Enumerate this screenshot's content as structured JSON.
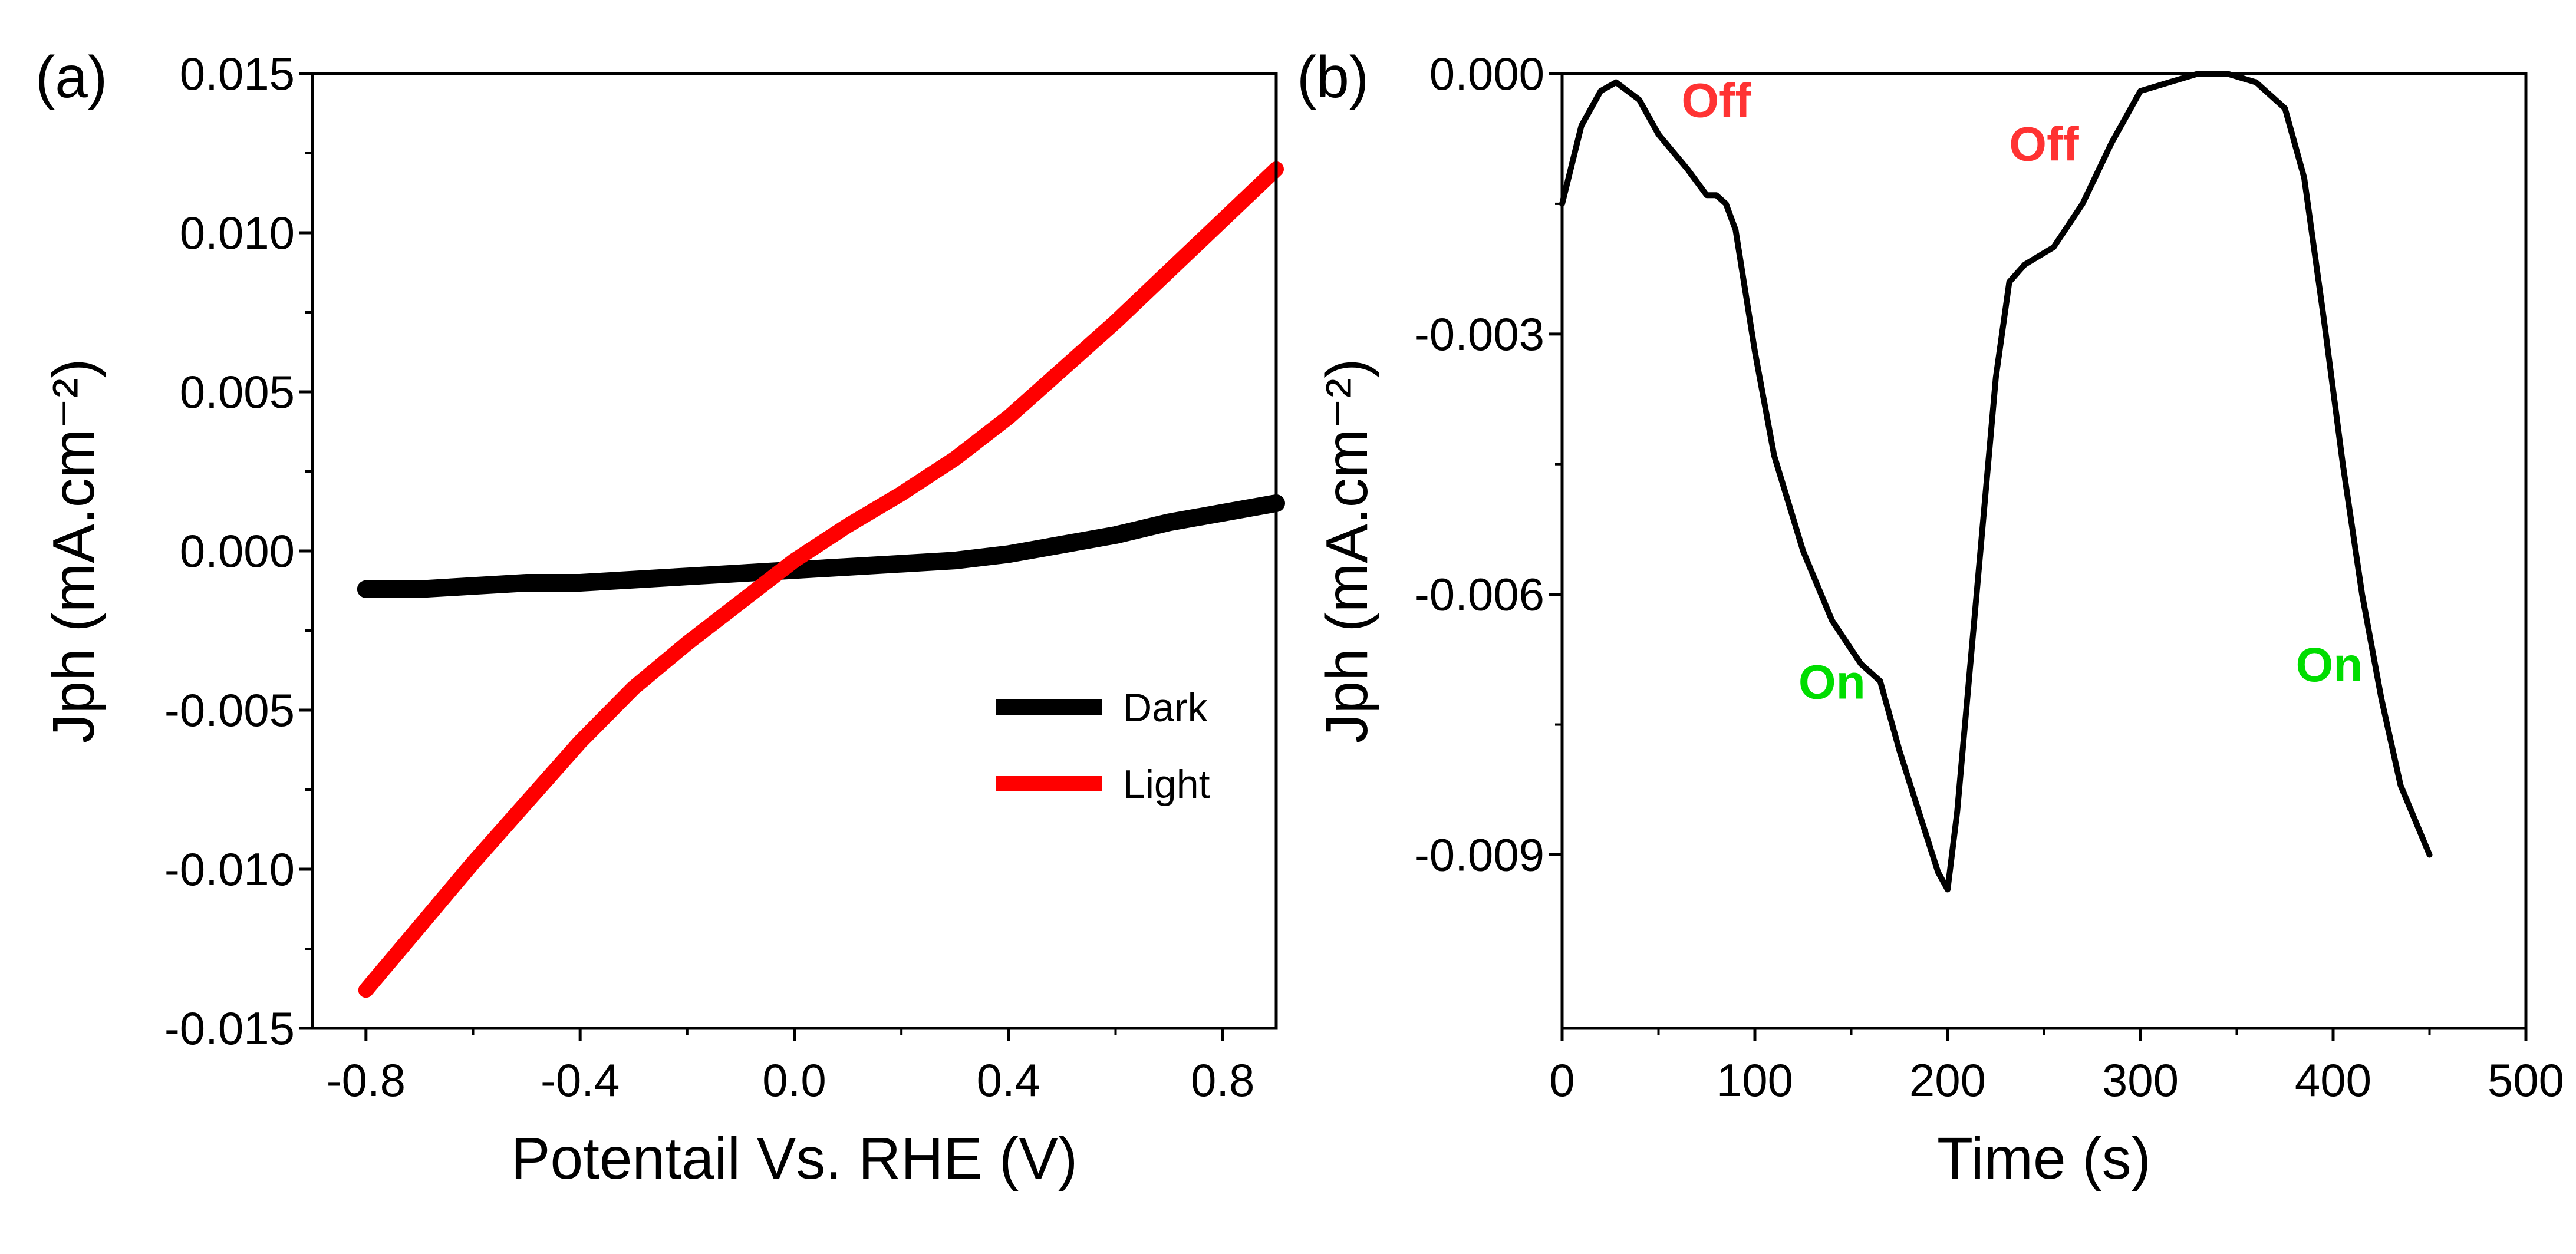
{
  "chart_data": [
    {
      "panel": "(a)",
      "type": "line",
      "title": "",
      "xlabel": "Potentail Vs. RHE  (V)",
      "ylabel": "Jph (mA.cm⁻²)",
      "xlim": [
        -0.9,
        0.9
      ],
      "ylim": [
        -0.015,
        0.015
      ],
      "xticks": [
        "-0.8",
        "-0.4",
        "0.0",
        "0.4",
        "0.8"
      ],
      "xtick_values": [
        -0.8,
        -0.4,
        0.0,
        0.4,
        0.8
      ],
      "yticks": [
        "-0.015",
        "-0.010",
        "-0.005",
        "0.000",
        "0.005",
        "0.010",
        "0.015"
      ],
      "ytick_values": [
        -0.015,
        -0.01,
        -0.005,
        0.0,
        0.005,
        0.01,
        0.015
      ],
      "legend_position": "bottom-right",
      "series": [
        {
          "name": "Dark",
          "color": "#000000",
          "x": [
            -0.8,
            -0.7,
            -0.6,
            -0.5,
            -0.4,
            -0.3,
            -0.2,
            -0.1,
            0.0,
            0.1,
            0.2,
            0.3,
            0.4,
            0.5,
            0.6,
            0.7,
            0.8,
            0.9
          ],
          "y": [
            -0.0012,
            -0.0012,
            -0.0011,
            -0.001,
            -0.001,
            -0.0009,
            -0.0008,
            -0.0007,
            -0.0006,
            -0.0005,
            -0.0004,
            -0.0003,
            -0.0001,
            0.0002,
            0.0005,
            0.0009,
            0.0012,
            0.0015
          ]
        },
        {
          "name": "Light",
          "color": "#ff0000",
          "x": [
            -0.8,
            -0.7,
            -0.6,
            -0.5,
            -0.4,
            -0.3,
            -0.2,
            -0.1,
            0.0,
            0.1,
            0.2,
            0.3,
            0.4,
            0.5,
            0.6,
            0.7,
            0.8,
            0.9
          ],
          "y": [
            -0.0138,
            -0.0118,
            -0.0098,
            -0.0079,
            -0.006,
            -0.0043,
            -0.0029,
            -0.0016,
            -0.0003,
            0.0008,
            0.0018,
            0.0029,
            0.0042,
            0.0057,
            0.0072,
            0.0088,
            0.0104,
            0.012
          ]
        }
      ]
    },
    {
      "panel": "(b)",
      "type": "line",
      "title": "",
      "xlabel": "Time (s)",
      "ylabel": "Jph (mA.cm⁻²)",
      "xlim": [
        0,
        500
      ],
      "ylim": [
        -0.011,
        0.0
      ],
      "xticks": [
        "0",
        "100",
        "200",
        "300",
        "400",
        "500"
      ],
      "xtick_values": [
        0,
        100,
        200,
        300,
        400,
        500
      ],
      "yticks": [
        "-0.009",
        "-0.006",
        "-0.003",
        "0.000"
      ],
      "ytick_values": [
        -0.009,
        -0.006,
        -0.003,
        0.0
      ],
      "series": [
        {
          "name": "Jph",
          "color": "#000000",
          "x": [
            0,
            10,
            20,
            28,
            40,
            50,
            65,
            75,
            80,
            85,
            90,
            100,
            110,
            125,
            140,
            155,
            165,
            175,
            185,
            195,
            200,
            205,
            215,
            225,
            232,
            240,
            255,
            270,
            285,
            300,
            315,
            330,
            345,
            360,
            375,
            385,
            395,
            405,
            415,
            425,
            435,
            450
          ],
          "y": [
            -0.0015,
            -0.0006,
            -0.0002,
            -0.0001,
            -0.0003,
            -0.0007,
            -0.0011,
            -0.0014,
            -0.0014,
            -0.0015,
            -0.0018,
            -0.0032,
            -0.0044,
            -0.0055,
            -0.0063,
            -0.0068,
            -0.007,
            -0.0078,
            -0.0085,
            -0.0092,
            -0.0094,
            -0.0085,
            -0.006,
            -0.0035,
            -0.0024,
            -0.0022,
            -0.002,
            -0.0015,
            -0.0008,
            -0.0002,
            -0.0001,
            0.0,
            0.0,
            -0.0001,
            -0.0004,
            -0.0012,
            -0.0028,
            -0.0045,
            -0.006,
            -0.0072,
            -0.0082,
            -0.009
          ]
        }
      ],
      "annotations": [
        {
          "text": "Off",
          "x": 80,
          "y": -0.0005,
          "color": "#ff3333"
        },
        {
          "text": "Off",
          "x": 250,
          "y": -0.001,
          "color": "#ff3333"
        },
        {
          "text": "On",
          "x": 140,
          "y": -0.0072,
          "color": "#00dd00"
        },
        {
          "text": "On",
          "x": 398,
          "y": -0.007,
          "color": "#00dd00"
        }
      ]
    }
  ]
}
